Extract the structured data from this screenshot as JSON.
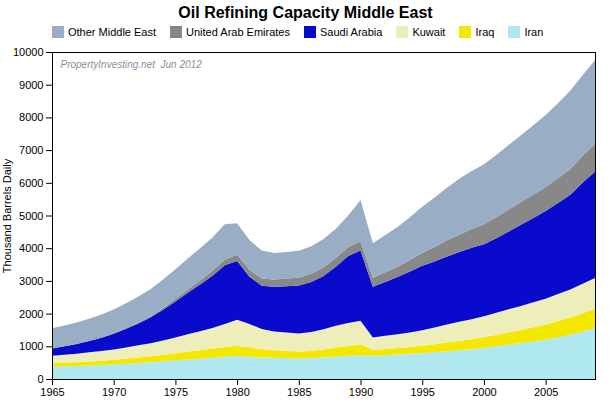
{
  "chart_data": {
    "type": "area",
    "stacked": true,
    "title": "Oil Refining Capacity Middle East",
    "ylabel": "Thousand Barrels Daily",
    "annotations": [
      "PropertyInvesting.net  Jun 2012"
    ],
    "x": [
      1965,
      1966,
      1967,
      1968,
      1969,
      1970,
      1971,
      1972,
      1973,
      1974,
      1975,
      1976,
      1977,
      1978,
      1979,
      1980,
      1981,
      1982,
      1983,
      1984,
      1985,
      1986,
      1987,
      1988,
      1989,
      1990,
      1991,
      1992,
      1993,
      1994,
      1995,
      1996,
      1997,
      1998,
      1999,
      2000,
      2001,
      2002,
      2003,
      2004,
      2005,
      2006,
      2007,
      2008,
      2009
    ],
    "series": [
      {
        "name": "Iran",
        "color": "#b0e8f0",
        "values": [
          380,
          390,
          400,
          415,
          430,
          450,
          470,
          490,
          510,
          540,
          570,
          600,
          620,
          650,
          680,
          700,
          680,
          660,
          650,
          640,
          630,
          640,
          660,
          690,
          710,
          730,
          710,
          730,
          750,
          770,
          790,
          820,
          850,
          880,
          910,
          950,
          1000,
          1050,
          1100,
          1150,
          1200,
          1280,
          1350,
          1450,
          1550
        ]
      },
      {
        "name": "Iraq",
        "color": "#f5e800",
        "values": [
          100,
          108,
          115,
          122,
          130,
          140,
          155,
          170,
          185,
          200,
          220,
          240,
          260,
          280,
          300,
          320,
          280,
          250,
          230,
          220,
          210,
          220,
          240,
          270,
          300,
          330,
          180,
          190,
          200,
          210,
          225,
          245,
          265,
          285,
          305,
          325,
          350,
          375,
          400,
          430,
          460,
          490,
          520,
          560,
          600
        ]
      },
      {
        "name": "Kuwait",
        "color": "#eeeebb",
        "values": [
          230,
          245,
          260,
          278,
          295,
          315,
          340,
          370,
          400,
          435,
          480,
          530,
          580,
          630,
          700,
          790,
          720,
          620,
          570,
          560,
          550,
          580,
          620,
          670,
          700,
          720,
          380,
          400,
          420,
          445,
          475,
          510,
          550,
          585,
          615,
          645,
          675,
          705,
          735,
          765,
          795,
          830,
          865,
          900,
          940
        ]
      },
      {
        "name": "Saudi Arabia",
        "color": "#0a0acc",
        "values": [
          220,
          255,
          295,
          345,
          405,
          480,
          570,
          670,
          790,
          940,
          1100,
          1270,
          1430,
          1600,
          1800,
          1800,
          1450,
          1320,
          1370,
          1420,
          1470,
          1530,
          1630,
          1800,
          2050,
          2150,
          1550,
          1650,
          1750,
          1860,
          1970,
          2020,
          2080,
          2130,
          2180,
          2200,
          2280,
          2380,
          2480,
          2580,
          2680,
          2780,
          2900,
          3100,
          3250
        ]
      },
      {
        "name": "United Arab Emirates",
        "color": "#888888",
        "values": [
          0,
          0,
          0,
          0,
          0,
          5,
          15,
          25,
          35,
          55,
          75,
          95,
          120,
          150,
          170,
          195,
          210,
          220,
          225,
          235,
          240,
          248,
          258,
          268,
          278,
          285,
          275,
          295,
          315,
          355,
          395,
          445,
          495,
          535,
          575,
          615,
          645,
          675,
          700,
          720,
          740,
          760,
          790,
          820,
          850
        ]
      },
      {
        "name": "Other Middle East",
        "color": "#99aec4",
        "values": [
          620,
          640,
          660,
          685,
          710,
          735,
          765,
          800,
          835,
          875,
          910,
          950,
          985,
          1020,
          1080,
          960,
          910,
          860,
          810,
          810,
          820,
          840,
          870,
          900,
          960,
          1260,
          1060,
          1135,
          1215,
          1310,
          1415,
          1510,
          1610,
          1710,
          1775,
          1835,
          1900,
          1970,
          2040,
          2115,
          2195,
          2290,
          2395,
          2470,
          2560
        ]
      }
    ],
    "legend_order": [
      "Other Middle East",
      "United Arab Emirates",
      "Saudi Arabia",
      "Kuwait",
      "Iraq",
      "Iran"
    ],
    "legend": "upper left",
    "xlim": [
      1965,
      2009
    ],
    "xticks": [
      1965,
      1970,
      1975,
      1980,
      1985,
      1990,
      1995,
      2000,
      2005
    ],
    "ylim": [
      0,
      10000
    ],
    "yticks": [
      0,
      1000,
      2000,
      3000,
      4000,
      5000,
      6000,
      7000,
      8000,
      9000,
      10000
    ]
  }
}
